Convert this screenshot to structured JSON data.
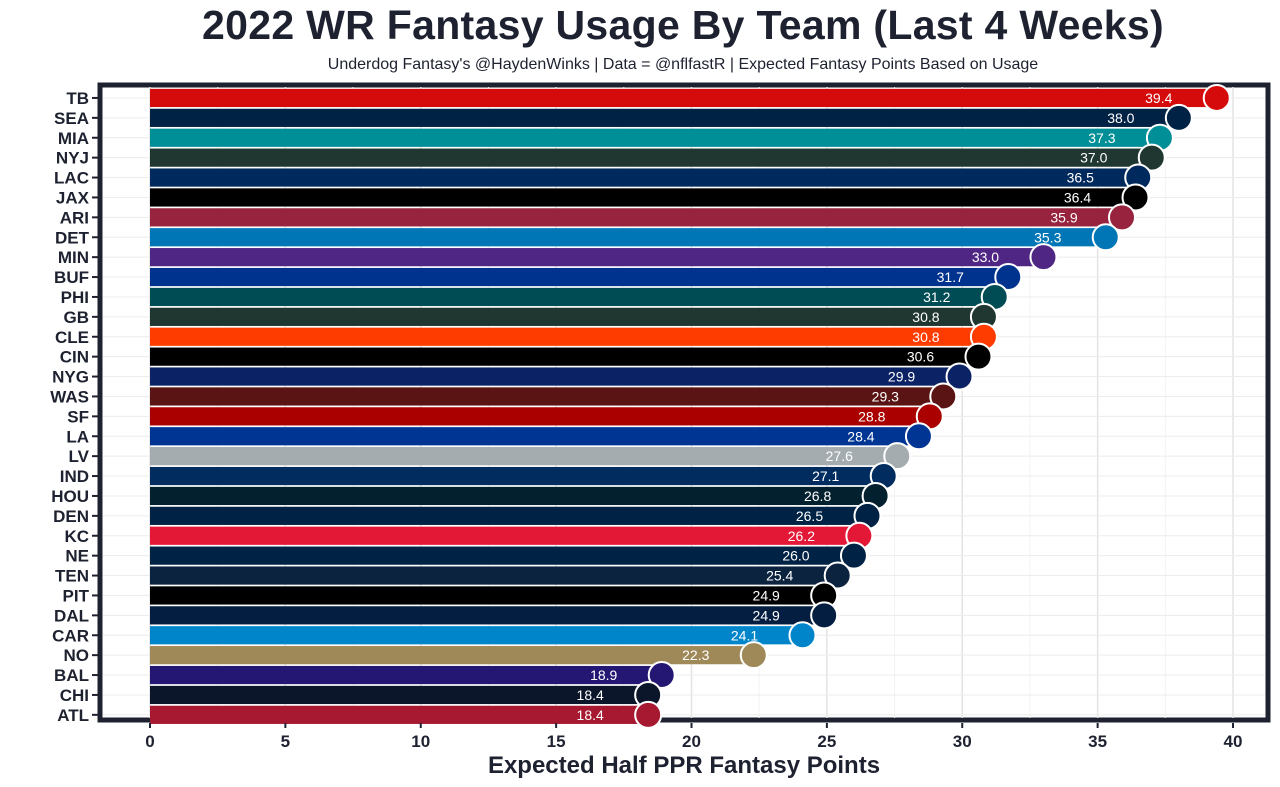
{
  "chart_data": {
    "type": "bar",
    "orientation": "horizontal",
    "title": "2022 WR Fantasy Usage By Team (Last 4 Weeks)",
    "subtitle": "Underdog Fantasy's @HaydenWinks | Data = @nflfastR | Expected Fantasy Points Based on Usage",
    "xlabel": "Expected Half PPR Fantasy Points",
    "ylabel": "",
    "xlim": [
      0,
      40
    ],
    "xticks": [
      0,
      5,
      10,
      15,
      20,
      25,
      30,
      35,
      40
    ],
    "grid": true,
    "categories": [
      "TB",
      "SEA",
      "MIA",
      "NYJ",
      "LAC",
      "JAX",
      "ARI",
      "DET",
      "MIN",
      "BUF",
      "PHI",
      "GB",
      "CLE",
      "CIN",
      "NYG",
      "WAS",
      "SF",
      "LA",
      "LV",
      "IND",
      "HOU",
      "DEN",
      "KC",
      "NE",
      "TEN",
      "PIT",
      "DAL",
      "CAR",
      "NO",
      "BAL",
      "CHI",
      "ATL"
    ],
    "values": [
      39.4,
      38.0,
      37.3,
      37.0,
      36.5,
      36.4,
      35.9,
      35.3,
      33.0,
      31.7,
      31.2,
      30.8,
      30.8,
      30.6,
      29.9,
      29.3,
      28.8,
      28.4,
      27.6,
      27.1,
      26.8,
      26.5,
      26.2,
      26.0,
      25.4,
      24.9,
      24.9,
      24.1,
      22.3,
      18.9,
      18.4,
      18.4
    ],
    "value_labels": [
      "39.4",
      "38.0",
      "37.3",
      "37.0",
      "36.5",
      "36.4",
      "35.9",
      "35.3",
      "33.0",
      "31.7",
      "31.2",
      "30.8",
      "30.8",
      "30.6",
      "29.9",
      "29.3",
      "28.8",
      "28.4",
      "27.6",
      "27.1",
      "26.8",
      "26.5",
      "26.2",
      "26.0",
      "25.4",
      "24.9",
      "24.9",
      "24.1",
      "22.3",
      "18.9",
      "18.4",
      "18.4"
    ],
    "bar_colors": [
      "#d50a0a",
      "#002244",
      "#008e97",
      "#203731",
      "#002a5e",
      "#000000",
      "#97233f",
      "#0076b6",
      "#4f2683",
      "#00338d",
      "#004c54",
      "#203731",
      "#ff3c00",
      "#000000",
      "#0b2265",
      "#5a1414",
      "#aa0000",
      "#003594",
      "#a5acaf",
      "#002c5f",
      "#03202f",
      "#002244",
      "#e31837",
      "#002244",
      "#0c2340",
      "#000000",
      "#041e42",
      "#0085ca",
      "#9f8958",
      "#241773",
      "#0b162a",
      "#a71930"
    ],
    "logo_icons": [
      "buccaneers-logo",
      "seahawks-logo",
      "dolphins-logo",
      "jets-logo",
      "chargers-logo",
      "jaguars-logo",
      "cardinals-logo",
      "lions-logo",
      "vikings-logo",
      "bills-logo",
      "eagles-logo",
      "packers-logo",
      "browns-logo",
      "bengals-logo",
      "giants-logo",
      "commanders-logo",
      "49ers-logo",
      "rams-logo",
      "raiders-logo",
      "colts-logo",
      "texans-logo",
      "broncos-logo",
      "chiefs-logo",
      "patriots-logo",
      "titans-logo",
      "steelers-logo",
      "cowboys-logo",
      "panthers-logo",
      "saints-logo",
      "ravens-logo",
      "bears-logo",
      "falcons-logo"
    ]
  }
}
